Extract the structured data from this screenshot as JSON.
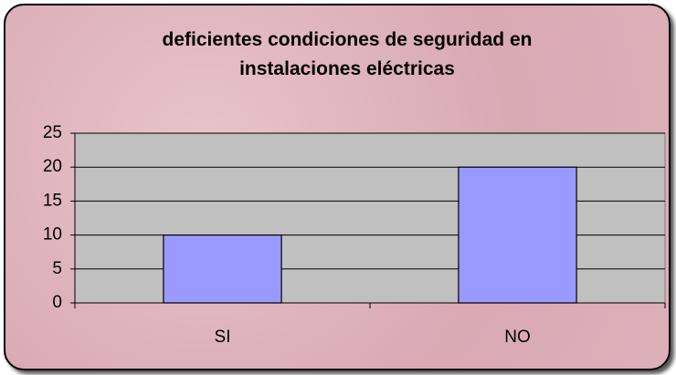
{
  "chart_data": {
    "type": "bar",
    "title": "deficientes condiciones de seguridad en instalaciones eléctricas",
    "categories": [
      "SI",
      "NO"
    ],
    "values": [
      10,
      20
    ],
    "color": "#9999ff",
    "ylim": [
      0,
      25
    ],
    "yticks": [
      0,
      5,
      10,
      15,
      20,
      25
    ],
    "grid": true
  }
}
